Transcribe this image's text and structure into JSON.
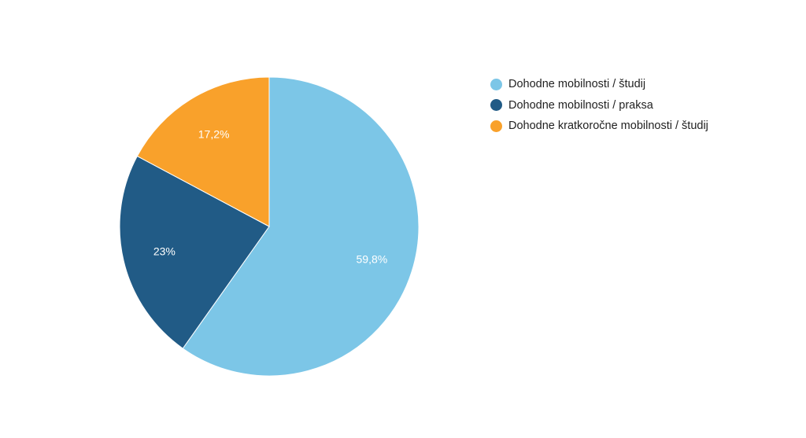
{
  "chart_data": {
    "type": "pie",
    "title": "",
    "slices": [
      {
        "name": "Dohodne mobilnosti / študij",
        "value": 59.8,
        "label": "59,8%",
        "color": "#7cc6e7"
      },
      {
        "name": "Dohodne mobilnosti / praksa",
        "value": 23,
        "label": "23%",
        "color": "#215b86"
      },
      {
        "name": "Dohodne kratkoročne mobilnosti / študij",
        "value": 17.2,
        "label": "17,2%",
        "color": "#f9a12b"
      }
    ],
    "legend": {
      "position": "right"
    }
  }
}
